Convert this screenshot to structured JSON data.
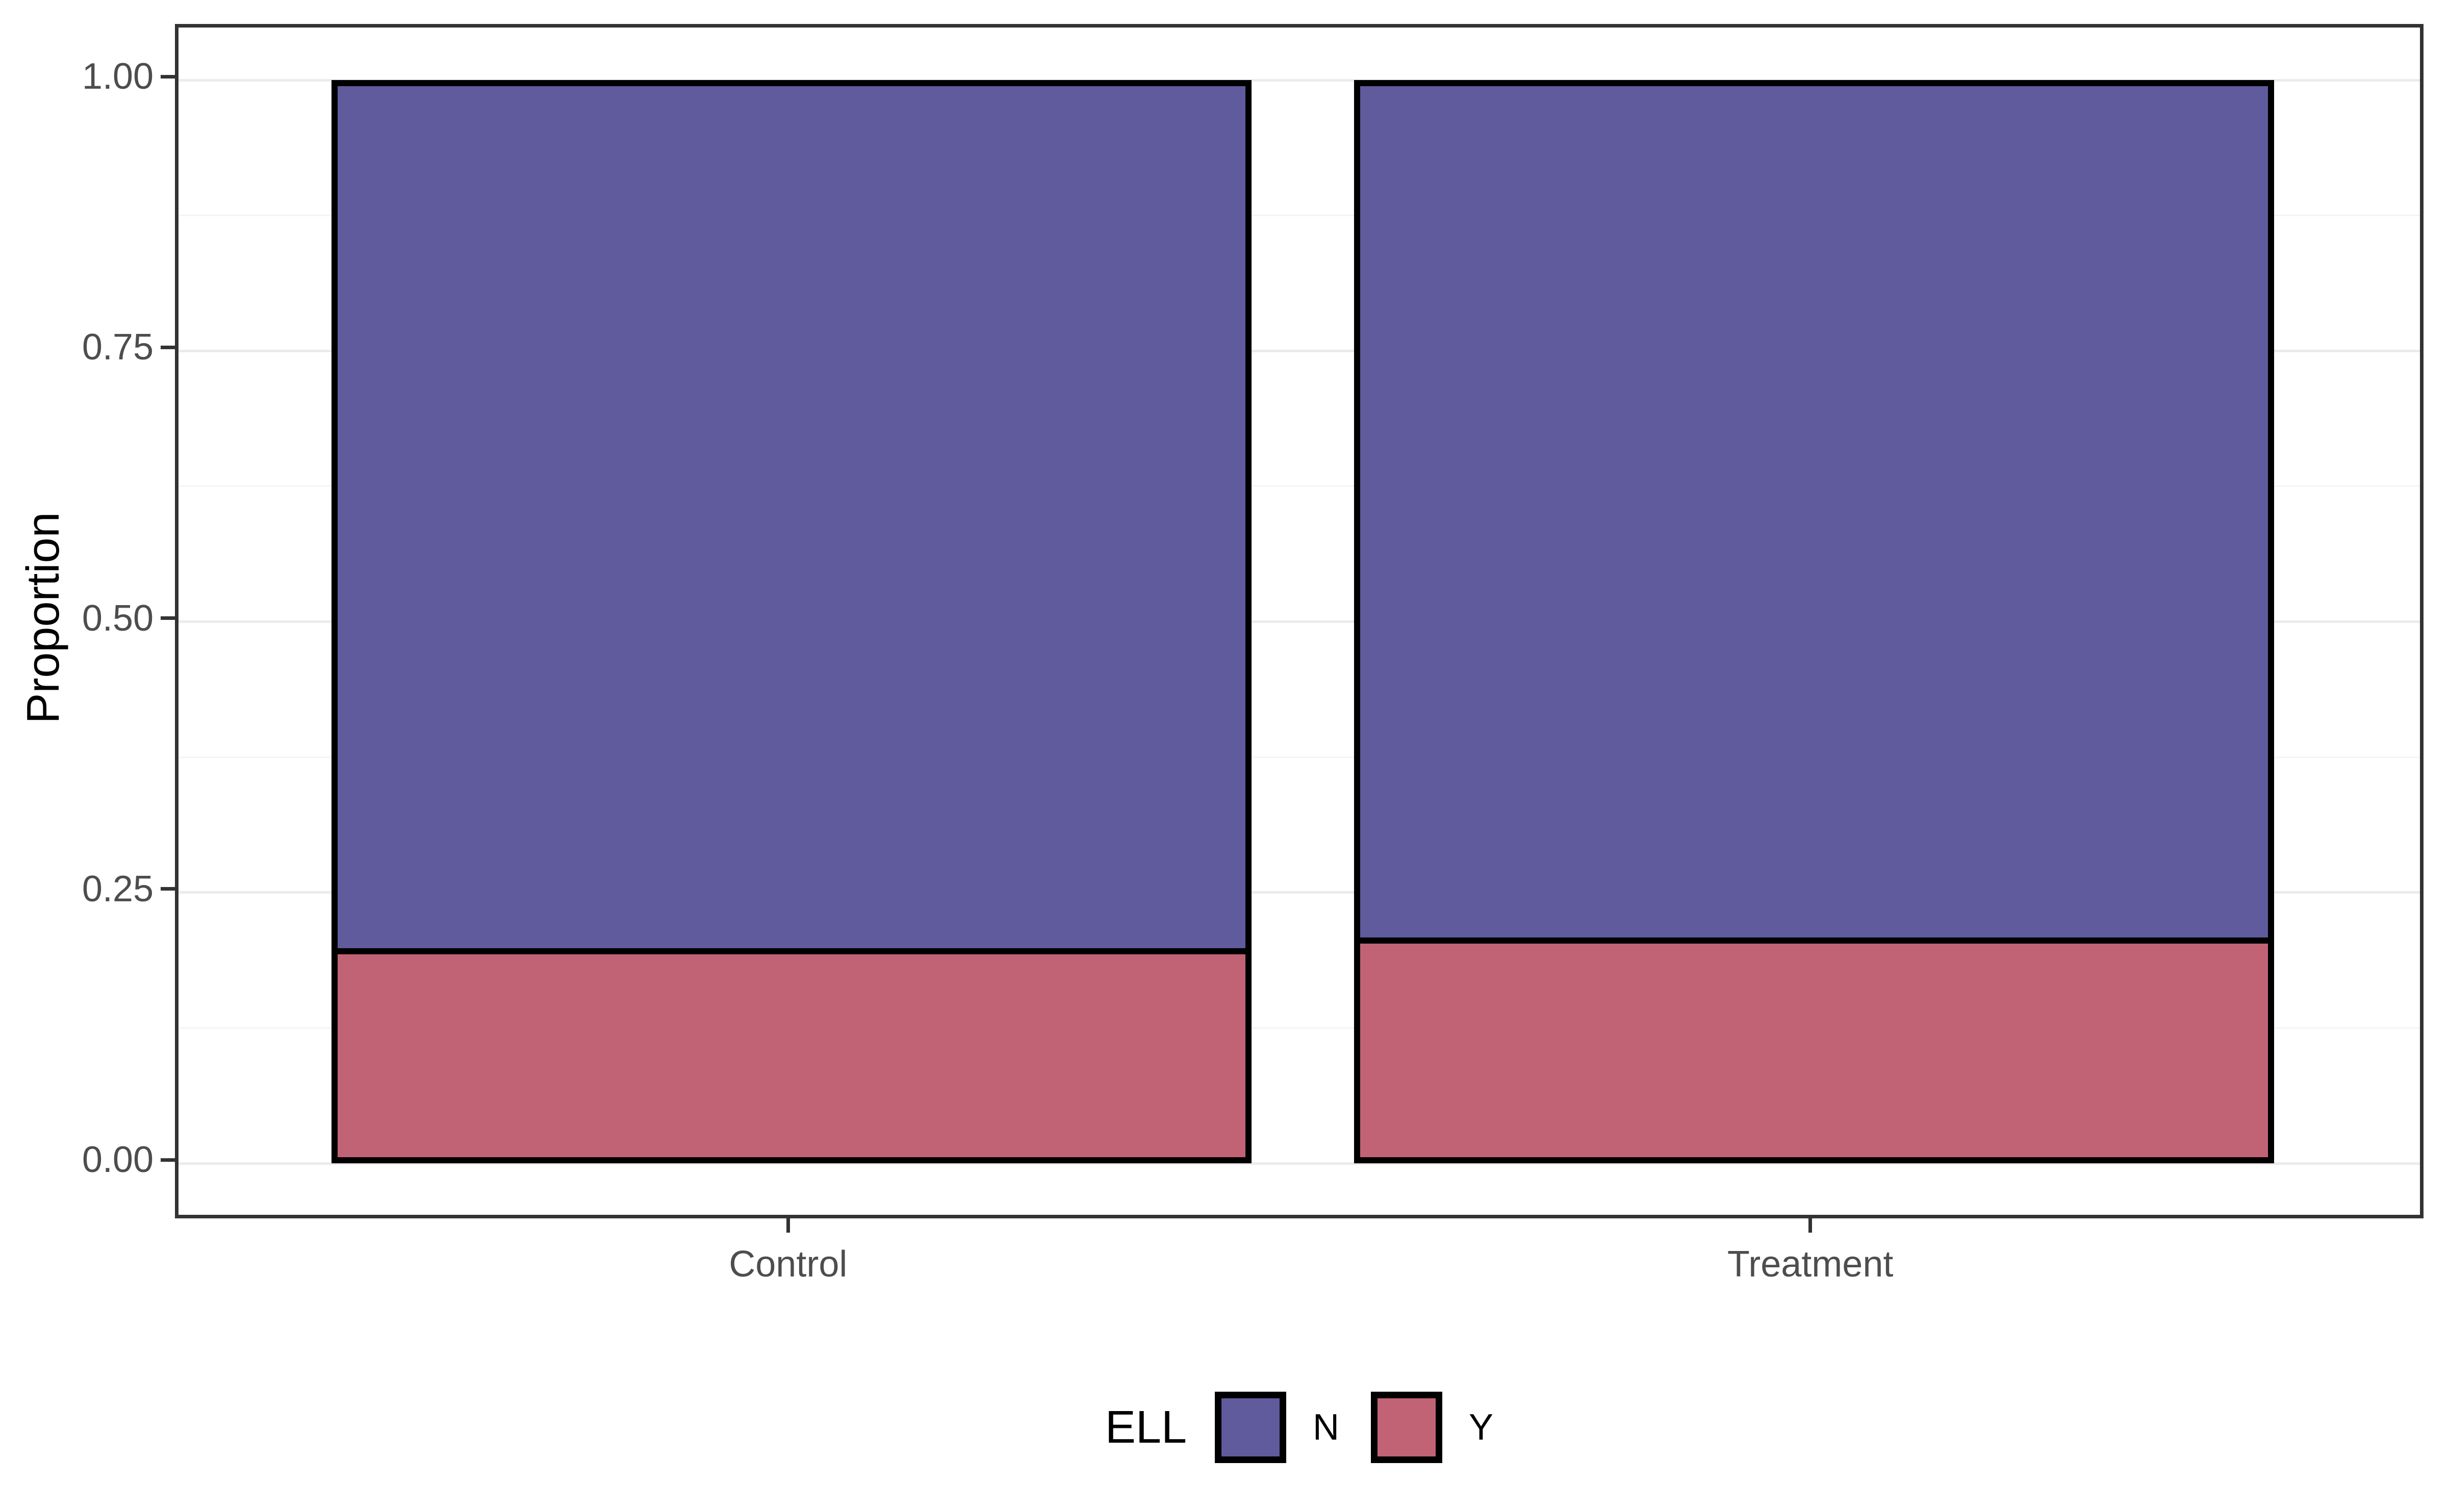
{
  "chart_data": {
    "type": "bar",
    "stacked": true,
    "orientation": "vertical",
    "title": "",
    "xlabel": "",
    "ylabel": "Proportion",
    "categories": [
      "Control",
      "Treatment"
    ],
    "series": [
      {
        "name": "N",
        "color": "#5F5B9C",
        "values": [
          0.81,
          0.8
        ]
      },
      {
        "name": "Y",
        "color": "#C16374",
        "values": [
          0.19,
          0.2
        ]
      }
    ],
    "stack_order_bottom_to_top": [
      "Y",
      "N"
    ],
    "ylim": [
      0,
      1
    ],
    "yticks": {
      "values": [
        0,
        0.25,
        0.5,
        0.75,
        1
      ],
      "labels": [
        "0.00",
        "0.25",
        "0.50",
        "0.75",
        "1.00"
      ]
    },
    "minor_yticks": [
      0.125,
      0.375,
      0.625,
      0.875
    ],
    "grid": {
      "major": true,
      "minor": true
    },
    "bar_outline_color": "#000000",
    "legend": {
      "title": "ELL",
      "position": "bottom",
      "entries": [
        "N",
        "Y"
      ]
    }
  },
  "colors": {
    "background": "#FFFFFF",
    "panel_border": "#333333",
    "grid_major": "#EBEBEB",
    "grid_minor": "#F4F4F4",
    "tick_mark": "#333333",
    "tick_label": "#4D4D4D",
    "axis_title": "#000000",
    "legend_text": "#000000"
  }
}
